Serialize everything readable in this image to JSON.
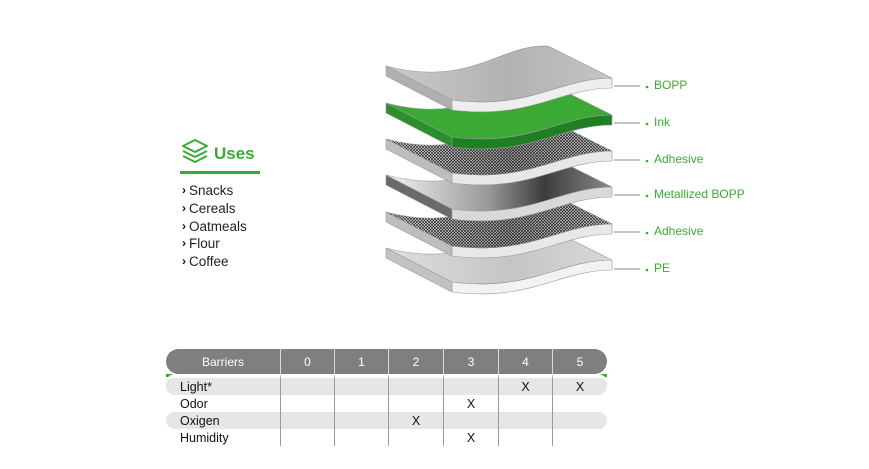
{
  "uses": {
    "title": "Uses",
    "items": [
      "Snacks",
      "Cereals",
      "Oatmeals",
      "Flour",
      "Coffee"
    ]
  },
  "layers": [
    {
      "label": "BOPP",
      "kind": "plain"
    },
    {
      "label": "Ink",
      "kind": "ink"
    },
    {
      "label": "Adhesive",
      "kind": "adhesive"
    },
    {
      "label": "Metallized BOPP",
      "kind": "metal"
    },
    {
      "label": "Adhesive",
      "kind": "adhesive"
    },
    {
      "label": "PE",
      "kind": "pe"
    }
  ],
  "barriers": {
    "header": "Barriers",
    "levels": [
      "0",
      "1",
      "2",
      "3",
      "4",
      "5"
    ],
    "rows": [
      {
        "name": "Light*",
        "marks": [
          "",
          "",
          "",
          "",
          "X",
          "X"
        ]
      },
      {
        "name": "Odor",
        "marks": [
          "",
          "",
          "",
          "X",
          "",
          ""
        ]
      },
      {
        "name": "Oxigen",
        "marks": [
          "",
          "",
          "X",
          "",
          "",
          ""
        ]
      },
      {
        "name": "Humidity",
        "marks": [
          "",
          "",
          "",
          "X",
          "",
          ""
        ]
      }
    ]
  },
  "colors": {
    "accent": "#3aaa35",
    "header_gray": "#7f7f7f",
    "row_shade": "#e6e6e6"
  }
}
